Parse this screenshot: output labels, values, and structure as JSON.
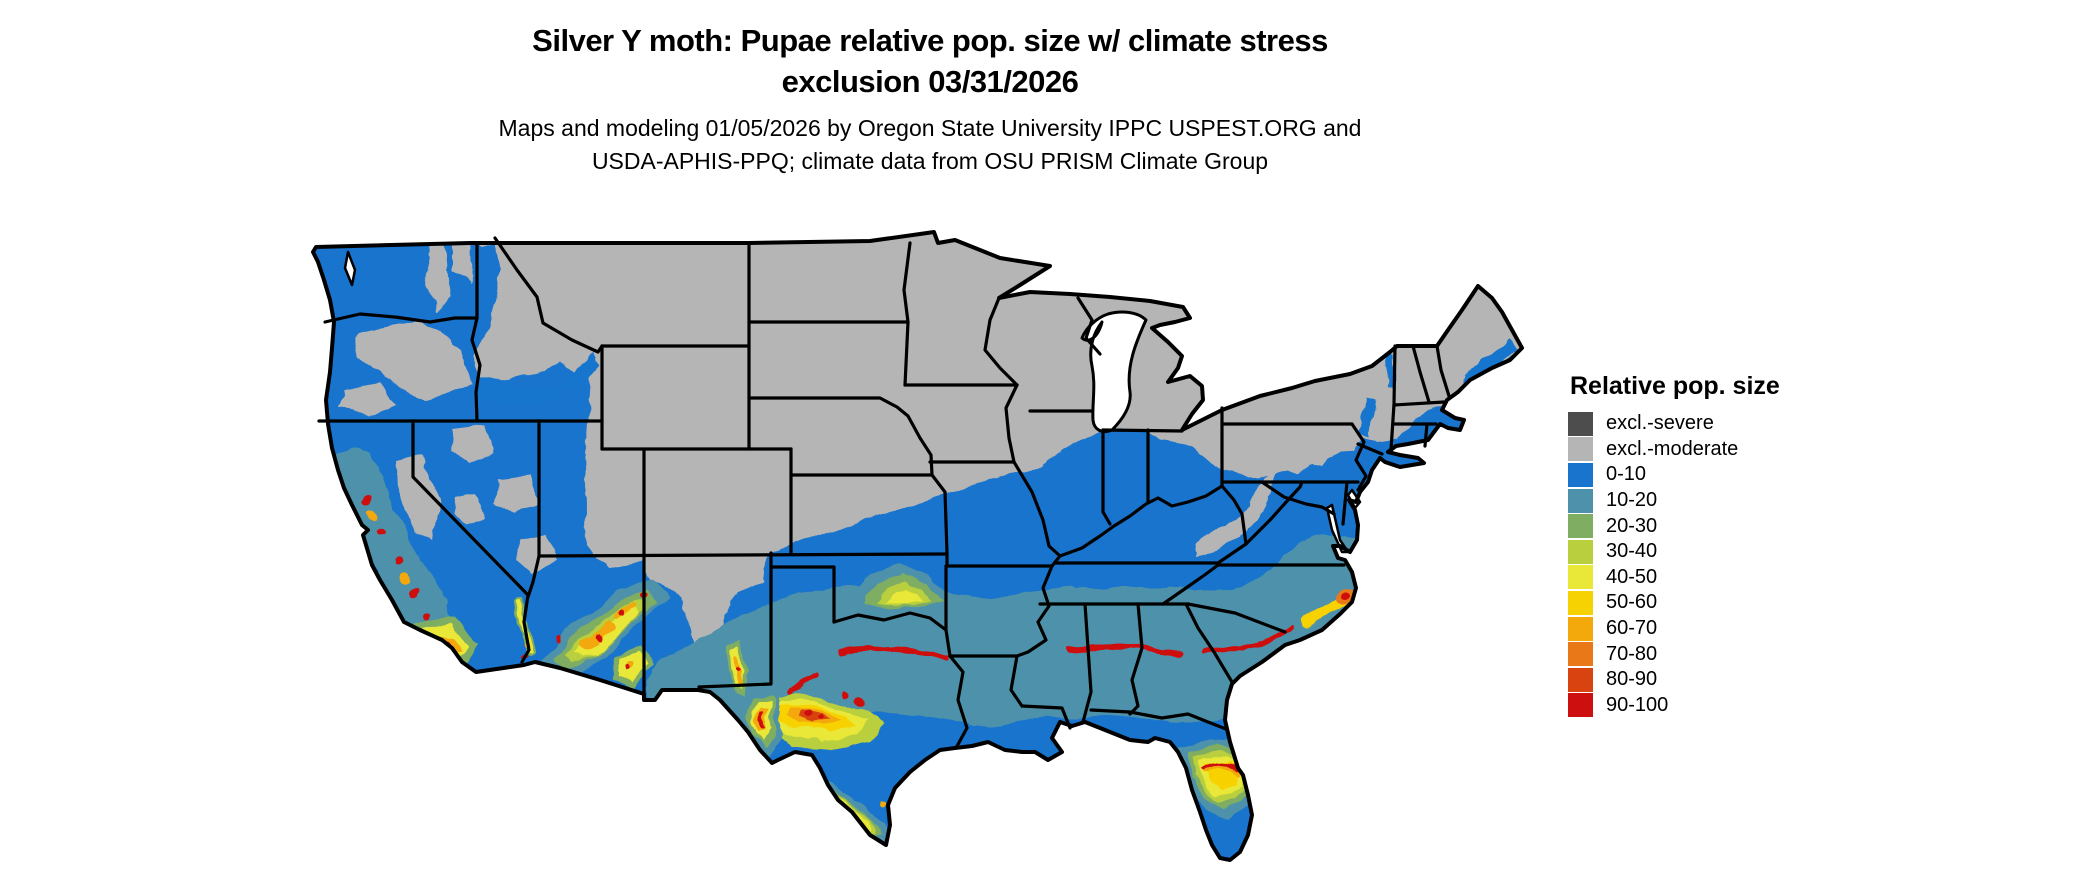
{
  "title": {
    "line1": "Silver Y moth: Pupae relative pop. size w/ climate stress",
    "line2": "exclusion 03/31/2026"
  },
  "subtitle": {
    "line1": "Maps and modeling 01/05/2026 by Oregon State University IPPC USPEST.ORG and",
    "line2": "USDA-APHIS-PPQ; climate data from OSU PRISM Climate Group"
  },
  "legend": {
    "title": "Relative pop. size",
    "items": [
      {
        "label": "excl.-severe",
        "color": "#4d4d4d"
      },
      {
        "label": "excl.-moderate",
        "color": "#b5b5b5"
      },
      {
        "label": "0-10",
        "color": "#1874cd"
      },
      {
        "label": "10-20",
        "color": "#4d92aa"
      },
      {
        "label": "20-30",
        "color": "#7fad62"
      },
      {
        "label": "30-40",
        "color": "#b9cf3d"
      },
      {
        "label": "40-50",
        "color": "#e9e839"
      },
      {
        "label": "50-60",
        "color": "#f7d203"
      },
      {
        "label": "60-70",
        "color": "#f3a80c"
      },
      {
        "label": "70-80",
        "color": "#e97918"
      },
      {
        "label": "80-90",
        "color": "#d8430f"
      },
      {
        "label": "90-100",
        "color": "#ce0f0f"
      }
    ]
  },
  "colors": {
    "excl_severe": "#4d4d4d",
    "excl_moderate": "#b5b5b5",
    "c0": "#1874cd",
    "c10": "#4d92aa",
    "c20": "#7fad62",
    "c30": "#b9cf3d",
    "c40": "#e9e839",
    "c50": "#f7d203",
    "c60": "#f3a80c",
    "c70": "#e97918",
    "c80": "#d8430f",
    "c90": "#ce0f0f",
    "outline": "#000000",
    "water": "#ffffff"
  }
}
